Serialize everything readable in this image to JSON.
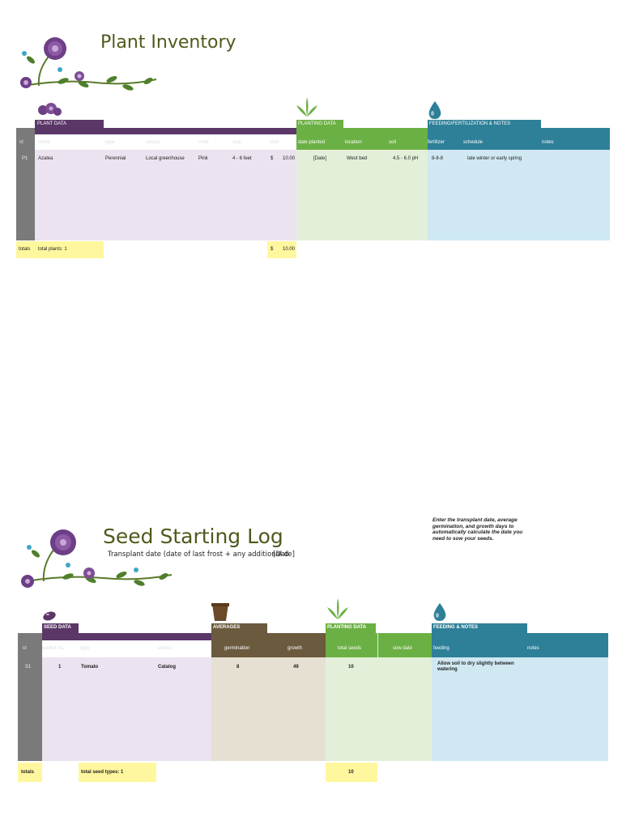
{
  "inventory": {
    "title": "Plant Inventory",
    "sections": {
      "plant": "PLANT DATA",
      "planting": "PLANTING DATA",
      "feeding": "FEEDING/FERTILIZATION & NOTES"
    },
    "columns": {
      "id": "id",
      "name": "name",
      "type": "type",
      "source": "source",
      "color": "color",
      "size": "size",
      "cost": "cost",
      "date_planted": "date planted",
      "location": "location",
      "soil": "soil",
      "fertilizer": "fertilizer",
      "schedule": "schedule",
      "notes": "notes"
    },
    "row": {
      "id": "P1",
      "name": "Azalea",
      "type": "Perennial",
      "source": "Local greenhouse",
      "color": "Pink",
      "size": "4 - 6 feet",
      "currency": "$",
      "cost": "10.00",
      "date_planted": "[Date]",
      "location": "West bed",
      "soil": "4.5 - 6.0 pH",
      "fertilizer": "8-8-8",
      "schedule": "late winter or early spring"
    },
    "totals": {
      "label": "totals",
      "plants": "total plants: 1",
      "currency": "$",
      "cost": "10.00"
    }
  },
  "seed_log": {
    "title": "Seed Starting Log",
    "transplant_label": "Transplant date (date of last frost + any additional d",
    "transplant_value": "[Date]",
    "instruction": "Enter the transplant date, average germination, and growth days to automatically calculate the date you need to sow your seeds.",
    "sections": {
      "seed": "SEED DATA",
      "averages": "AVERAGES",
      "planting": "PLANTING DATA",
      "feeding": "FEEDING & NOTES"
    },
    "columns": {
      "id": "id",
      "packet_no": "packet no.",
      "type": "type",
      "source": "source",
      "germination": "germination",
      "growth": "growth",
      "total_seeds": "total seeds",
      "sow_date": "sow date",
      "feeding": "feeding",
      "notes": "notes"
    },
    "row": {
      "id": "S1",
      "packet_no": "1",
      "type": "Tomato",
      "source": "Catalog",
      "germination": "8",
      "growth": "49",
      "total_seeds": "10",
      "feeding": "Allow soil to dry slightly between watering"
    },
    "totals": {
      "label": "totals",
      "types": "total seed types: 1",
      "seeds": "10"
    }
  },
  "colors": {
    "plant_header": "#5b3768",
    "plant_body": "#ebe3ef",
    "planting_header": "#6bb044",
    "planting_body": "#e3efd9",
    "feeding_header": "#2e7f98",
    "feeding_body": "#d0e8f1",
    "averages_header": "#6b5a3d",
    "averages_body": "#e6e0d3",
    "id_column": "#7a7a7a",
    "totals": "#fff79e",
    "title": "#4e5a1c"
  },
  "icons": {
    "flower_decoration": "purple-flower-vine-icon",
    "plant_section": "purple-flowers-icon",
    "planting_section": "green-sprout-icon",
    "feeding_section": "water-drop-icon",
    "seed_section": "seed-bean-icon",
    "averages_section": "brown-pot-icon"
  }
}
